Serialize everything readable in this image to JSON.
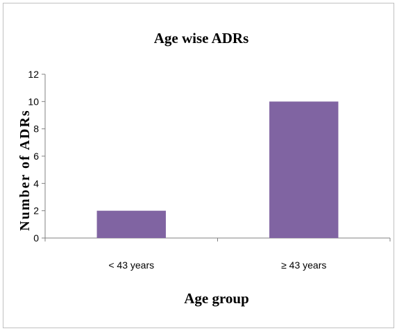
{
  "chart_data": {
    "type": "bar",
    "title": "Age wise ADRs",
    "xlabel": "Age group",
    "ylabel": "Number of ADRs",
    "categories": [
      "< 43 years",
      "≥ 43 years"
    ],
    "values": [
      2,
      10
    ],
    "ylim": [
      0,
      12
    ],
    "yticks": [
      0,
      2,
      4,
      6,
      8,
      10,
      12
    ],
    "bar_color": "#8064a2",
    "grid": false,
    "legend": "none"
  }
}
